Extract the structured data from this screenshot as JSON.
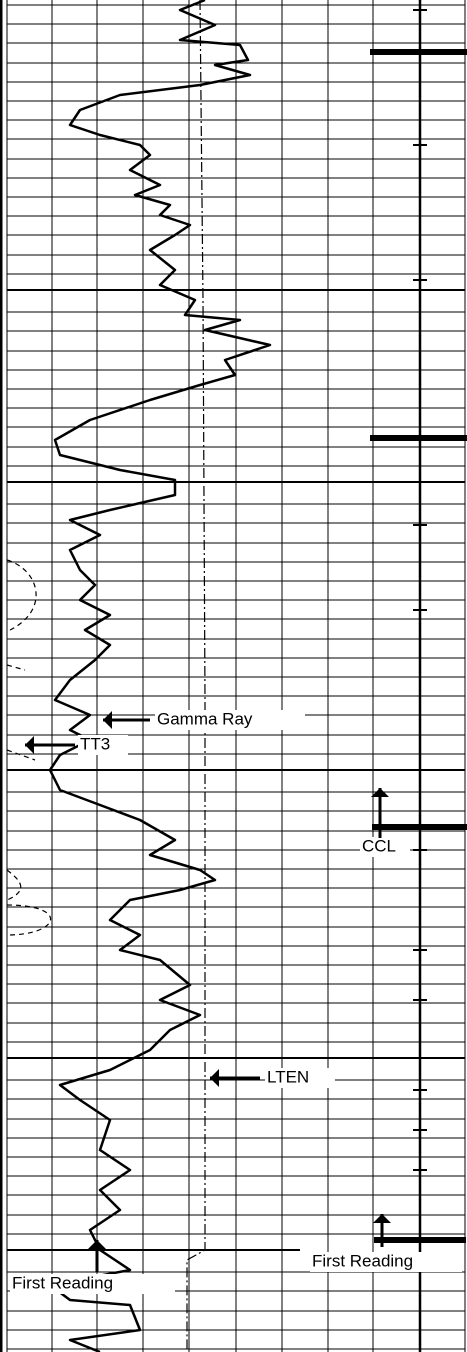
{
  "annotations": [
    {
      "id": "gamma-ray",
      "text": "Gamma Ray"
    },
    {
      "id": "tt3",
      "text": "TT3"
    },
    {
      "id": "ccl",
      "text": "CCL"
    },
    {
      "id": "lten",
      "text": "LTEN"
    },
    {
      "id": "first-reading-left",
      "text": "First Reading"
    },
    {
      "id": "first-reading-right",
      "text": "First Reading"
    }
  ]
}
